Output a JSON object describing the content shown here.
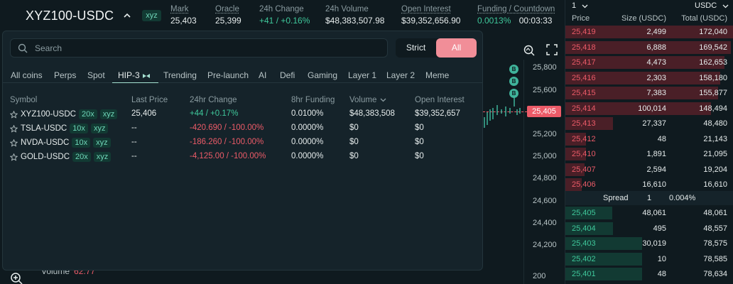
{
  "header": {
    "pair": "XYZ100-USDC",
    "badge": "xyz",
    "stats": [
      {
        "label": "Mark",
        "value": "25,403",
        "color": "white"
      },
      {
        "label": "Oracle",
        "value": "25,399",
        "color": "white"
      },
      {
        "label": "24h Change",
        "value": "+41 / +0.16%",
        "color": "green"
      },
      {
        "label": "24h Volume",
        "value": "$48,383,507.98",
        "color": "white"
      },
      {
        "label": "Open Interest",
        "value": "$39,352,656.90",
        "color": "white"
      },
      {
        "label": "Funding / Countdown",
        "value_a": "0.0013%",
        "value_b": "00:03:33"
      }
    ]
  },
  "search": {
    "placeholder": "Search"
  },
  "toggle": {
    "strict": "Strict",
    "all": "All",
    "active": "All"
  },
  "tabs": [
    "All coins",
    "Perps",
    "Spot",
    "HIP-3",
    "Trending",
    "Pre-launch",
    "AI",
    "Defi",
    "Gaming",
    "Layer 1",
    "Layer 2",
    "Meme"
  ],
  "active_tab": "HIP-3",
  "table": {
    "headers": {
      "symbol": "Symbol",
      "last_price": "Last Price",
      "change": "24hr Change",
      "funding": "8hr Funding",
      "volume": "Volume",
      "oi": "Open Interest"
    },
    "rows": [
      {
        "symbol": "XYZ100-USDC",
        "leverage": "20x",
        "dex": "xyz",
        "last": "25,406",
        "change": "+44 / +0.17%",
        "change_dir": "up",
        "funding": "0.0100%",
        "volume": "$48,383,508",
        "oi": "$39,352,657"
      },
      {
        "symbol": "TSLA-USDC",
        "leverage": "10x",
        "dex": "xyz",
        "last": "--",
        "change": "-420.690 / -100.00%",
        "change_dir": "down",
        "funding": "0.0000%",
        "volume": "$0",
        "oi": "$0"
      },
      {
        "symbol": "NVDA-USDC",
        "leverage": "10x",
        "dex": "xyz",
        "last": "--",
        "change": "-186.260 / -100.00%",
        "change_dir": "down",
        "funding": "0.0000%",
        "volume": "$0",
        "oi": "$0"
      },
      {
        "symbol": "GOLD-USDC",
        "leverage": "20x",
        "dex": "xyz",
        "last": "--",
        "change": "-4,125.00 / -100.00%",
        "change_dir": "down",
        "funding": "0.0000%",
        "volume": "$0",
        "oi": "$0"
      }
    ]
  },
  "chart": {
    "price_ticks": [
      "25,800",
      "25,600",
      "25,200",
      "25,000",
      "24,800",
      "24,600",
      "24,400",
      "24,200",
      "200"
    ],
    "current_price": "25,405",
    "markers": [
      "B",
      "B",
      "B"
    ],
    "volume_label": "Volume",
    "volume_value": "62.77"
  },
  "orderbook": {
    "group": "1",
    "currency": "USDC",
    "headers": {
      "price": "Price",
      "size": "Size (USDC)",
      "total": "Total (USDC)"
    },
    "asks": [
      {
        "price": "25,419",
        "size": "2,499",
        "total": "172,040",
        "depth": 1.0
      },
      {
        "price": "25,418",
        "size": "6,888",
        "total": "169,542",
        "depth": 0.985
      },
      {
        "price": "25,417",
        "size": "4,473",
        "total": "162,653",
        "depth": 0.945
      },
      {
        "price": "25,416",
        "size": "2,303",
        "total": "158,180",
        "depth": 0.919
      },
      {
        "price": "25,415",
        "size": "7,383",
        "total": "155,877",
        "depth": 0.906
      },
      {
        "price": "25,414",
        "size": "100,014",
        "total": "148,494",
        "depth": 0.863
      },
      {
        "price": "25,413",
        "size": "27,337",
        "total": "48,480",
        "depth": 0.282
      },
      {
        "price": "25,412",
        "size": "48",
        "total": "21,143",
        "depth": 0.123
      },
      {
        "price": "25,410",
        "size": "1,891",
        "total": "21,095",
        "depth": 0.123
      },
      {
        "price": "25,407",
        "size": "2,594",
        "total": "19,204",
        "depth": 0.112
      },
      {
        "price": "25,406",
        "size": "16,610",
        "total": "16,610",
        "depth": 0.097
      }
    ],
    "spread": {
      "label": "Spread",
      "value": "1",
      "pct": "0.004%"
    },
    "bids": [
      {
        "price": "25,405",
        "size": "48,061",
        "total": "48,061",
        "depth": 0.279
      },
      {
        "price": "25,404",
        "size": "495",
        "total": "48,557",
        "depth": 0.282
      },
      {
        "price": "25,403",
        "size": "30,019",
        "total": "78,575",
        "depth": 0.457
      },
      {
        "price": "25,402",
        "size": "10",
        "total": "78,585",
        "depth": 0.457
      },
      {
        "price": "25,401",
        "size": "48",
        "total": "78,634",
        "depth": 0.457
      }
    ]
  }
}
